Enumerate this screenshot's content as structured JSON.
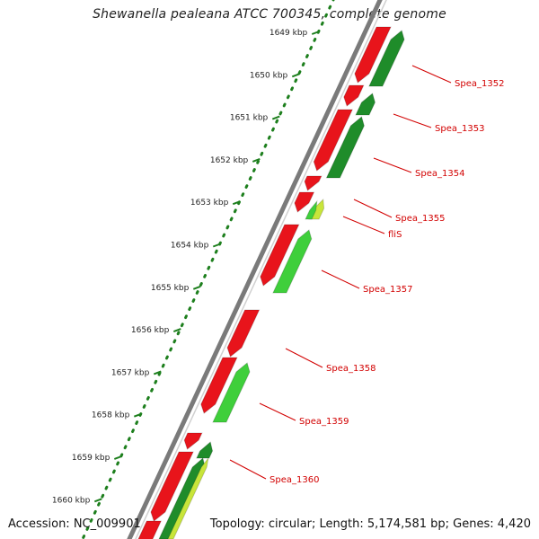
{
  "title": "Shewanella pealeana ATCC 700345, complete genome",
  "accession": "Accession: NC_009901",
  "summary": "Topology: circular; Length: 5,174,581 bp; Genes: 4,420",
  "ticks": [
    "1649 kbp",
    "1650 kbp",
    "1651 kbp",
    "1652 kbp",
    "1653 kbp",
    "1654 kbp",
    "1655 kbp",
    "1656 kbp",
    "1657 kbp",
    "1658 kbp",
    "1659 kbp",
    "1660 kbp"
  ],
  "genes": [
    "Spea_1352",
    "Spea_1353",
    "Spea_1354",
    "Spea_1355",
    "fliS",
    "Spea_1357",
    "Spea_1358",
    "Spea_1359",
    "Spea_1360"
  ],
  "colors": {
    "reverse_strand": "#e8141b",
    "forward_strand_dark": "#1f8c2a",
    "forward_strand_light": "#3fcf3b",
    "forward_strand_yellow": "#c8e53a",
    "label": "#d20000",
    "ticks": "#1d7f1d",
    "backbone": "#7a7a7a"
  }
}
